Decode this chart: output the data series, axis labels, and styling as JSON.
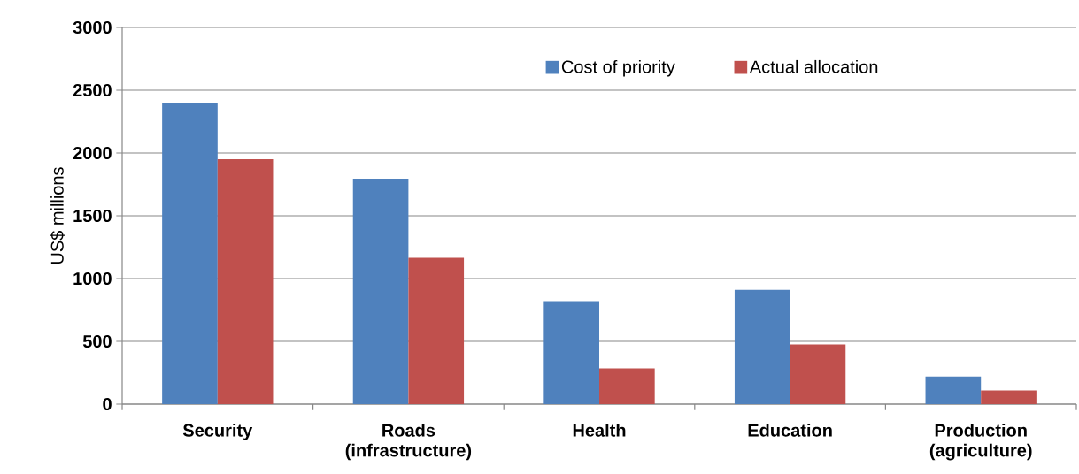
{
  "chart_data": {
    "type": "bar",
    "ylabel": "US$ millions",
    "categories": [
      "Security",
      "Roads (infrastructure)",
      "Health",
      "Education",
      "Production (agriculture)"
    ],
    "series": [
      {
        "name": "Cost of priority",
        "color": "#4f81bd",
        "values": [
          2400,
          1795,
          820,
          910,
          220
        ]
      },
      {
        "name": "Actual allocation",
        "color": "#c0504d",
        "values": [
          1950,
          1165,
          285,
          475,
          110
        ]
      }
    ],
    "ylim": [
      0,
      3000
    ],
    "yticks": [
      0,
      500,
      1000,
      1500,
      2000,
      2500,
      3000
    ],
    "grid": "y",
    "legend": "top"
  }
}
